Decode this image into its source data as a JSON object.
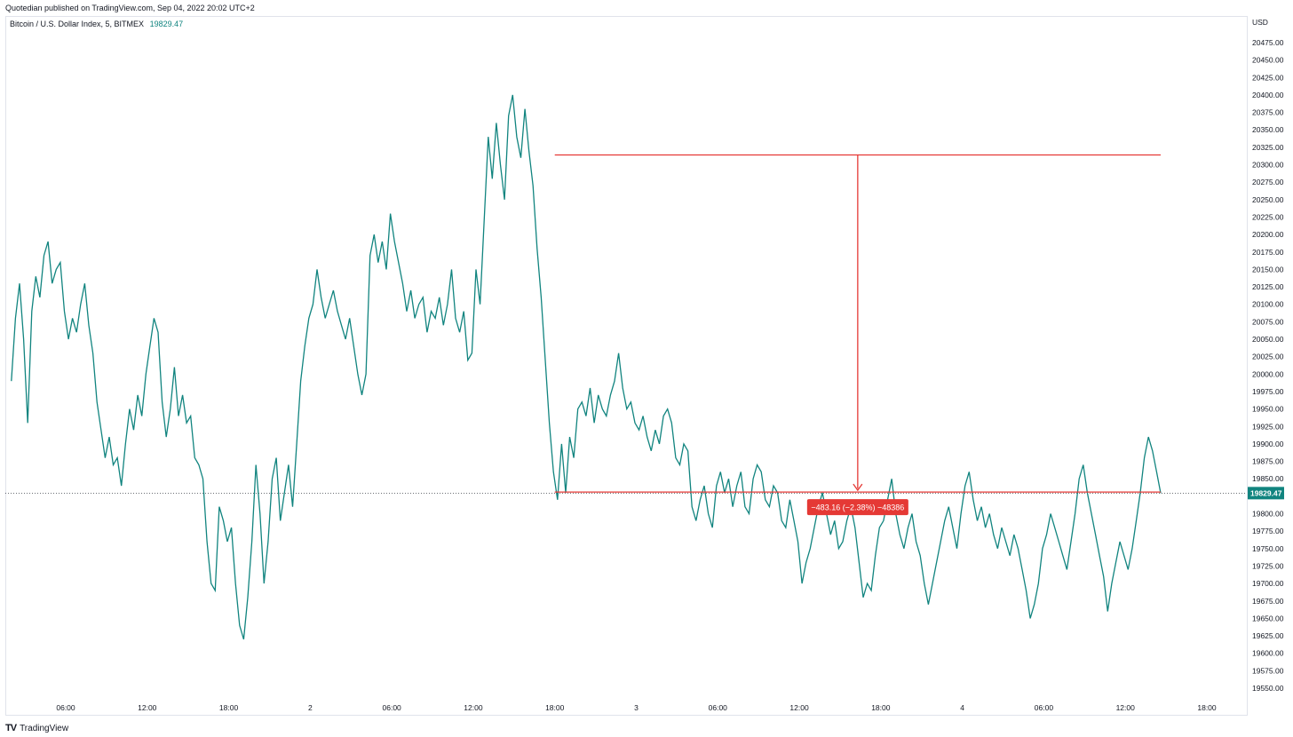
{
  "header": {
    "published": "Quotedian published on TradingView.com, Sep 04, 2022 20:02 UTC+2"
  },
  "legend": {
    "symbol": "Bitcoin / U.S. Dollar Index, 5, BITMEX",
    "last_price": "19829.47"
  },
  "footer": {
    "logo_mark": "TV",
    "brand": "TradingView"
  },
  "colors": {
    "series": "#11847f",
    "measure": "#e53935",
    "label_bg": "#e53935",
    "price_badge": "#11847f"
  },
  "measure": {
    "label": "−483.16 (−2.38%) −48386",
    "top_price": 20314,
    "bottom_price": 19831,
    "start_x_label": "18:00",
    "end_x_label": "4"
  },
  "chart_data": {
    "type": "line",
    "currency_label": "USD",
    "ylim": [
      19540,
      20500
    ],
    "y_ticks": [
      20475,
      20450,
      20425,
      20400,
      20375,
      20350,
      20325,
      20300,
      20275,
      20250,
      20225,
      20200,
      20175,
      20150,
      20125,
      20100,
      20075,
      20050,
      20025,
      20000,
      19975,
      19950,
      19925,
      19900,
      19875,
      19850,
      19825,
      19800,
      19775,
      19750,
      19725,
      19700,
      19675,
      19650,
      19625,
      19600,
      19575,
      19550
    ],
    "y_tick_labels": [
      "20475.00",
      "20450.00",
      "20425.00",
      "20400.00",
      "20375.00",
      "20350.00",
      "20325.00",
      "20300.00",
      "20275.00",
      "20250.00",
      "20225.00",
      "20200.00",
      "20175.00",
      "20150.00",
      "20125.00",
      "20100.00",
      "20075.00",
      "20050.00",
      "20025.00",
      "20000.00",
      "19975.00",
      "19950.00",
      "19925.00",
      "19900.00",
      "19875.00",
      "19850.00",
      "19825.00",
      "19800.00",
      "19775.00",
      "19750.00",
      "19725.00",
      "19700.00",
      "19675.00",
      "19650.00",
      "19625.00",
      "19600.00",
      "19575.00",
      "19550.00"
    ],
    "x_tick_labels": [
      "06:00",
      "12:00",
      "18:00",
      "2",
      "06:00",
      "12:00",
      "18:00",
      "3",
      "06:00",
      "12:00",
      "18:00",
      "4",
      "06:00",
      "12:00",
      "18:00"
    ],
    "x_tick_hours": [
      6,
      12,
      18,
      24,
      30,
      36,
      42,
      48,
      54,
      60,
      66,
      72,
      78,
      84,
      90
    ],
    "xlim_hours": [
      1.8,
      93.0
    ],
    "series": [
      {
        "name": "Bitcoin / U.S. Dollar Index",
        "last": 19829.47,
        "points": [
          [
            2.0,
            19990
          ],
          [
            2.3,
            20080
          ],
          [
            2.6,
            20130
          ],
          [
            2.9,
            20050
          ],
          [
            3.2,
            19930
          ],
          [
            3.5,
            20090
          ],
          [
            3.8,
            20140
          ],
          [
            4.1,
            20110
          ],
          [
            4.4,
            20170
          ],
          [
            4.7,
            20190
          ],
          [
            5.0,
            20130
          ],
          [
            5.3,
            20150
          ],
          [
            5.6,
            20160
          ],
          [
            5.9,
            20090
          ],
          [
            6.2,
            20050
          ],
          [
            6.5,
            20080
          ],
          [
            6.8,
            20060
          ],
          [
            7.1,
            20100
          ],
          [
            7.4,
            20130
          ],
          [
            7.7,
            20070
          ],
          [
            8.0,
            20030
          ],
          [
            8.3,
            19960
          ],
          [
            8.6,
            19920
          ],
          [
            8.9,
            19880
          ],
          [
            9.2,
            19910
          ],
          [
            9.5,
            19870
          ],
          [
            9.8,
            19880
          ],
          [
            10.1,
            19840
          ],
          [
            10.4,
            19900
          ],
          [
            10.7,
            19950
          ],
          [
            11.0,
            19920
          ],
          [
            11.3,
            19970
          ],
          [
            11.6,
            19940
          ],
          [
            11.9,
            20000
          ],
          [
            12.2,
            20040
          ],
          [
            12.5,
            20080
          ],
          [
            12.8,
            20060
          ],
          [
            13.1,
            19960
          ],
          [
            13.4,
            19910
          ],
          [
            13.7,
            19950
          ],
          [
            14.0,
            20010
          ],
          [
            14.3,
            19940
          ],
          [
            14.6,
            19970
          ],
          [
            14.9,
            19930
          ],
          [
            15.2,
            19940
          ],
          [
            15.5,
            19880
          ],
          [
            15.8,
            19870
          ],
          [
            16.1,
            19850
          ],
          [
            16.4,
            19760
          ],
          [
            16.7,
            19700
          ],
          [
            17.0,
            19690
          ],
          [
            17.3,
            19810
          ],
          [
            17.6,
            19790
          ],
          [
            17.9,
            19760
          ],
          [
            18.2,
            19780
          ],
          [
            18.5,
            19700
          ],
          [
            18.8,
            19640
          ],
          [
            19.1,
            19620
          ],
          [
            19.4,
            19680
          ],
          [
            19.7,
            19760
          ],
          [
            20.0,
            19870
          ],
          [
            20.3,
            19800
          ],
          [
            20.6,
            19700
          ],
          [
            20.9,
            19760
          ],
          [
            21.2,
            19850
          ],
          [
            21.5,
            19880
          ],
          [
            21.8,
            19790
          ],
          [
            22.1,
            19830
          ],
          [
            22.4,
            19870
          ],
          [
            22.7,
            19810
          ],
          [
            23.0,
            19900
          ],
          [
            23.3,
            19990
          ],
          [
            23.6,
            20040
          ],
          [
            23.9,
            20080
          ],
          [
            24.2,
            20100
          ],
          [
            24.5,
            20150
          ],
          [
            24.8,
            20110
          ],
          [
            25.1,
            20080
          ],
          [
            25.4,
            20100
          ],
          [
            25.7,
            20120
          ],
          [
            26.0,
            20090
          ],
          [
            26.3,
            20070
          ],
          [
            26.6,
            20050
          ],
          [
            26.9,
            20080
          ],
          [
            27.2,
            20040
          ],
          [
            27.5,
            20000
          ],
          [
            27.8,
            19970
          ],
          [
            28.1,
            20000
          ],
          [
            28.4,
            20170
          ],
          [
            28.7,
            20200
          ],
          [
            29.0,
            20160
          ],
          [
            29.3,
            20190
          ],
          [
            29.6,
            20150
          ],
          [
            29.9,
            20230
          ],
          [
            30.2,
            20190
          ],
          [
            30.5,
            20160
          ],
          [
            30.8,
            20130
          ],
          [
            31.1,
            20090
          ],
          [
            31.4,
            20120
          ],
          [
            31.7,
            20080
          ],
          [
            32.0,
            20100
          ],
          [
            32.3,
            20110
          ],
          [
            32.6,
            20060
          ],
          [
            32.9,
            20090
          ],
          [
            33.2,
            20080
          ],
          [
            33.5,
            20110
          ],
          [
            33.8,
            20070
          ],
          [
            34.1,
            20100
          ],
          [
            34.4,
            20150
          ],
          [
            34.7,
            20080
          ],
          [
            35.0,
            20060
          ],
          [
            35.3,
            20090
          ],
          [
            35.6,
            20020
          ],
          [
            35.9,
            20030
          ],
          [
            36.2,
            20150
          ],
          [
            36.5,
            20100
          ],
          [
            36.8,
            20220
          ],
          [
            37.1,
            20340
          ],
          [
            37.4,
            20280
          ],
          [
            37.7,
            20360
          ],
          [
            38.0,
            20300
          ],
          [
            38.3,
            20250
          ],
          [
            38.6,
            20370
          ],
          [
            38.9,
            20400
          ],
          [
            39.2,
            20340
          ],
          [
            39.5,
            20310
          ],
          [
            39.8,
            20380
          ],
          [
            40.1,
            20320
          ],
          [
            40.4,
            20270
          ],
          [
            40.7,
            20180
          ],
          [
            41.0,
            20110
          ],
          [
            41.3,
            20020
          ],
          [
            41.6,
            19930
          ],
          [
            41.9,
            19860
          ],
          [
            42.2,
            19820
          ],
          [
            42.5,
            19900
          ],
          [
            42.8,
            19830
          ],
          [
            43.1,
            19910
          ],
          [
            43.4,
            19880
          ],
          [
            43.7,
            19950
          ],
          [
            44.0,
            19960
          ],
          [
            44.3,
            19940
          ],
          [
            44.6,
            19980
          ],
          [
            44.9,
            19930
          ],
          [
            45.2,
            19970
          ],
          [
            45.5,
            19950
          ],
          [
            45.8,
            19940
          ],
          [
            46.1,
            19970
          ],
          [
            46.4,
            19990
          ],
          [
            46.7,
            20030
          ],
          [
            47.0,
            19980
          ],
          [
            47.3,
            19950
          ],
          [
            47.6,
            19960
          ],
          [
            47.9,
            19930
          ],
          [
            48.2,
            19920
          ],
          [
            48.5,
            19940
          ],
          [
            48.8,
            19910
          ],
          [
            49.1,
            19890
          ],
          [
            49.4,
            19920
          ],
          [
            49.7,
            19900
          ],
          [
            50.0,
            19940
          ],
          [
            50.3,
            19950
          ],
          [
            50.6,
            19930
          ],
          [
            50.9,
            19880
          ],
          [
            51.2,
            19870
          ],
          [
            51.5,
            19900
          ],
          [
            51.8,
            19890
          ],
          [
            52.1,
            19810
          ],
          [
            52.4,
            19790
          ],
          [
            52.7,
            19820
          ],
          [
            53.0,
            19840
          ],
          [
            53.3,
            19800
          ],
          [
            53.6,
            19780
          ],
          [
            53.9,
            19840
          ],
          [
            54.2,
            19860
          ],
          [
            54.5,
            19830
          ],
          [
            54.8,
            19850
          ],
          [
            55.1,
            19810
          ],
          [
            55.4,
            19840
          ],
          [
            55.7,
            19860
          ],
          [
            56.0,
            19810
          ],
          [
            56.3,
            19800
          ],
          [
            56.6,
            19850
          ],
          [
            56.9,
            19870
          ],
          [
            57.2,
            19860
          ],
          [
            57.5,
            19820
          ],
          [
            57.8,
            19810
          ],
          [
            58.1,
            19840
          ],
          [
            58.4,
            19830
          ],
          [
            58.7,
            19790
          ],
          [
            59.0,
            19780
          ],
          [
            59.3,
            19820
          ],
          [
            59.6,
            19790
          ],
          [
            59.9,
            19760
          ],
          [
            60.2,
            19700
          ],
          [
            60.5,
            19730
          ],
          [
            60.8,
            19750
          ],
          [
            61.1,
            19780
          ],
          [
            61.4,
            19810
          ],
          [
            61.7,
            19830
          ],
          [
            62.0,
            19800
          ],
          [
            62.3,
            19770
          ],
          [
            62.6,
            19790
          ],
          [
            62.9,
            19750
          ],
          [
            63.2,
            19760
          ],
          [
            63.5,
            19790
          ],
          [
            63.8,
            19810
          ],
          [
            64.1,
            19780
          ],
          [
            64.4,
            19730
          ],
          [
            64.7,
            19680
          ],
          [
            65.0,
            19700
          ],
          [
            65.3,
            19690
          ],
          [
            65.6,
            19740
          ],
          [
            65.9,
            19780
          ],
          [
            66.2,
            19790
          ],
          [
            66.5,
            19820
          ],
          [
            66.8,
            19850
          ],
          [
            67.1,
            19800
          ],
          [
            67.4,
            19770
          ],
          [
            67.7,
            19750
          ],
          [
            68.0,
            19780
          ],
          [
            68.3,
            19800
          ],
          [
            68.6,
            19760
          ],
          [
            68.9,
            19740
          ],
          [
            69.2,
            19700
          ],
          [
            69.5,
            19670
          ],
          [
            69.8,
            19700
          ],
          [
            70.1,
            19730
          ],
          [
            70.4,
            19760
          ],
          [
            70.7,
            19790
          ],
          [
            71.0,
            19810
          ],
          [
            71.3,
            19780
          ],
          [
            71.6,
            19750
          ],
          [
            71.9,
            19800
          ],
          [
            72.2,
            19840
          ],
          [
            72.5,
            19860
          ],
          [
            72.8,
            19820
          ],
          [
            73.1,
            19790
          ],
          [
            73.4,
            19810
          ],
          [
            73.7,
            19780
          ],
          [
            74.0,
            19800
          ],
          [
            74.3,
            19770
          ],
          [
            74.6,
            19750
          ],
          [
            74.9,
            19780
          ],
          [
            75.2,
            19760
          ],
          [
            75.5,
            19740
          ],
          [
            75.8,
            19770
          ],
          [
            76.1,
            19750
          ],
          [
            76.4,
            19720
          ],
          [
            76.7,
            19690
          ],
          [
            77.0,
            19650
          ],
          [
            77.3,
            19670
          ],
          [
            77.6,
            19700
          ],
          [
            77.9,
            19750
          ],
          [
            78.2,
            19770
          ],
          [
            78.5,
            19800
          ],
          [
            78.8,
            19780
          ],
          [
            79.1,
            19760
          ],
          [
            79.4,
            19740
          ],
          [
            79.7,
            19720
          ],
          [
            80.0,
            19760
          ],
          [
            80.3,
            19800
          ],
          [
            80.6,
            19850
          ],
          [
            80.9,
            19870
          ],
          [
            81.2,
            19830
          ],
          [
            81.5,
            19800
          ],
          [
            81.8,
            19770
          ],
          [
            82.1,
            19740
          ],
          [
            82.4,
            19710
          ],
          [
            82.7,
            19660
          ],
          [
            83.0,
            19700
          ],
          [
            83.3,
            19730
          ],
          [
            83.6,
            19760
          ],
          [
            83.9,
            19740
          ],
          [
            84.2,
            19720
          ],
          [
            84.5,
            19750
          ],
          [
            84.8,
            19790
          ],
          [
            85.1,
            19830
          ],
          [
            85.4,
            19880
          ],
          [
            85.7,
            19910
          ],
          [
            86.0,
            19890
          ],
          [
            86.3,
            19860
          ],
          [
            86.6,
            19829.47
          ]
        ]
      }
    ]
  }
}
